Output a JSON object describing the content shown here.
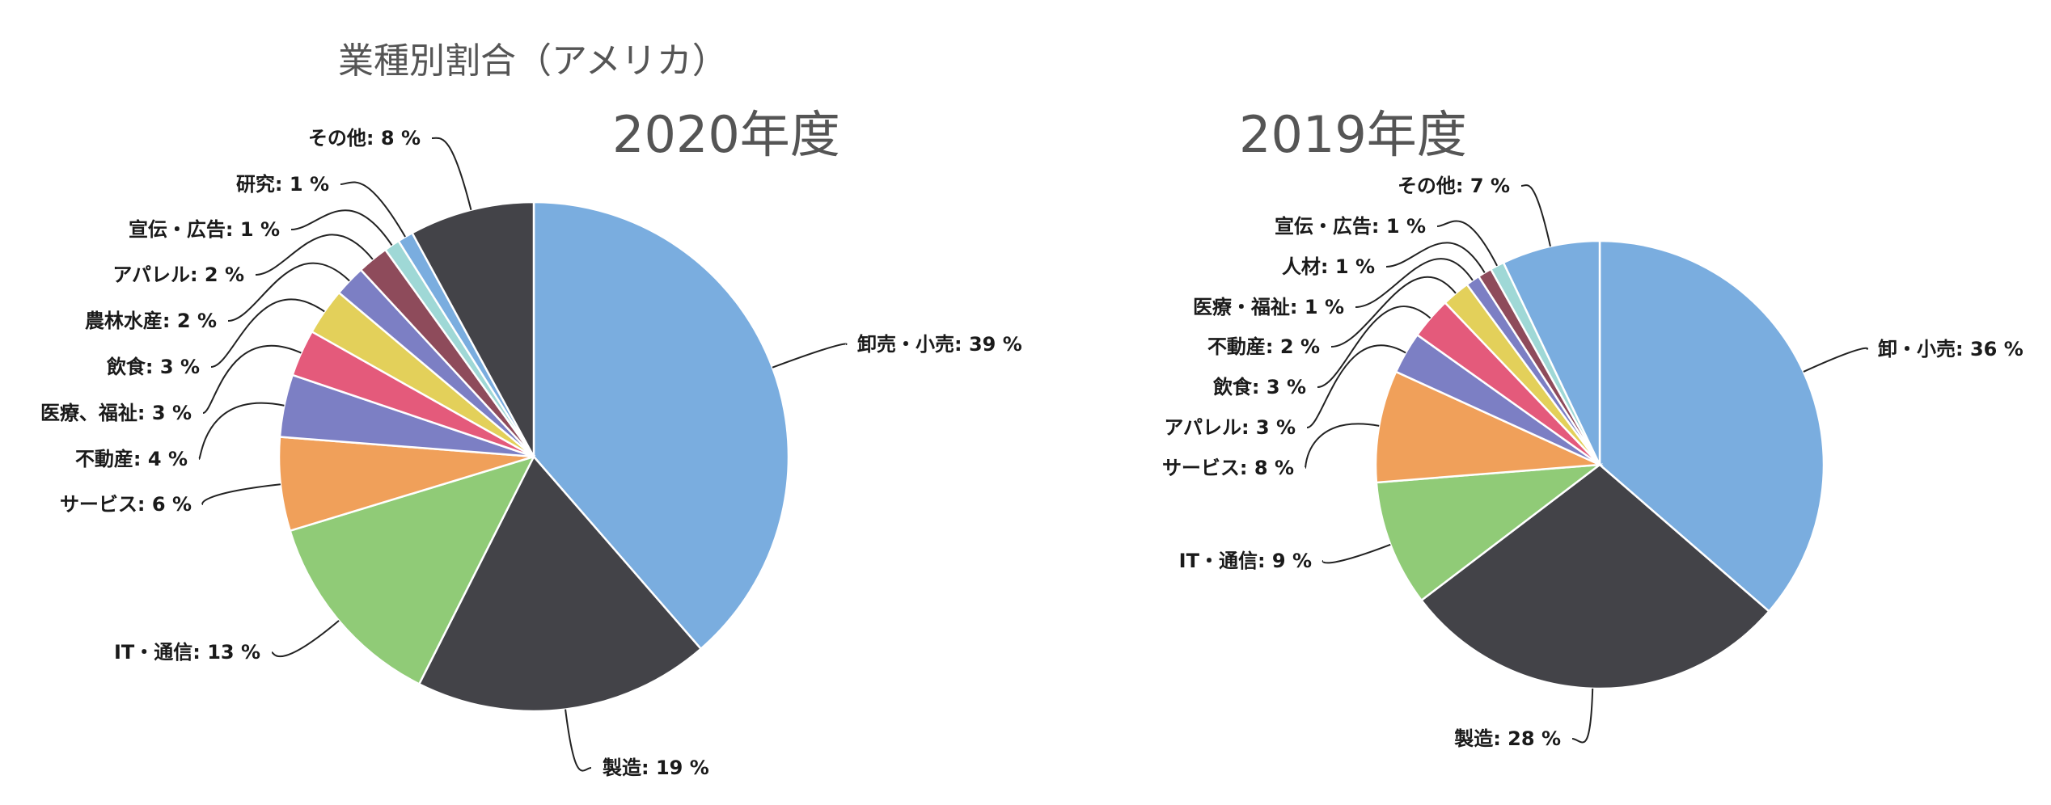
{
  "page_title": "業種別割合（アメリカ）",
  "chart_data": [
    {
      "type": "pie",
      "title": "2020年度",
      "slices": [
        {
          "label": "卸売・小売",
          "value": 39,
          "color": "#7aaddf"
        },
        {
          "label": "製造",
          "value": 19,
          "color": "#434348"
        },
        {
          "label": "IT・通信",
          "value": 13,
          "color": "#90cb77"
        },
        {
          "label": "サービス",
          "value": 6,
          "color": "#f0a05a"
        },
        {
          "label": "不動産",
          "value": 4,
          "color": "#7c7fc4"
        },
        {
          "label": "医療、福祉",
          "value": 3,
          "color": "#e45a7b"
        },
        {
          "label": "飲食",
          "value": 3,
          "color": "#e3d05a"
        },
        {
          "label": "農林水産",
          "value": 2,
          "color": "#7c7fc4"
        },
        {
          "label": "アパレル",
          "value": 2,
          "color": "#8e4b5b"
        },
        {
          "label": "宣伝・広告",
          "value": 1,
          "color": "#9fd8d6"
        },
        {
          "label": "研究",
          "value": 1,
          "color": "#7aaddf"
        },
        {
          "label": "その他",
          "value": 8,
          "color": "#434348"
        }
      ]
    },
    {
      "type": "pie",
      "title": "2019年度",
      "slices": [
        {
          "label": "卸・小売",
          "value": 36,
          "color": "#7aaddf"
        },
        {
          "label": "製造",
          "value": 28,
          "color": "#434348"
        },
        {
          "label": "IT・通信",
          "value": 9,
          "color": "#90cb77"
        },
        {
          "label": "サービス",
          "value": 8,
          "color": "#f0a05a"
        },
        {
          "label": "アパレル",
          "value": 3,
          "color": "#7c7fc4"
        },
        {
          "label": "飲食",
          "value": 3,
          "color": "#e45a7b"
        },
        {
          "label": "不動産",
          "value": 2,
          "color": "#e3d05a"
        },
        {
          "label": "医療・福祉",
          "value": 1,
          "color": "#7c7fc4"
        },
        {
          "label": "人材",
          "value": 1,
          "color": "#8e4b5b"
        },
        {
          "label": "宣伝・広告",
          "value": 1,
          "color": "#9fd8d6"
        },
        {
          "label": "その他",
          "value": 7,
          "color": "#7aaddf"
        }
      ]
    }
  ]
}
